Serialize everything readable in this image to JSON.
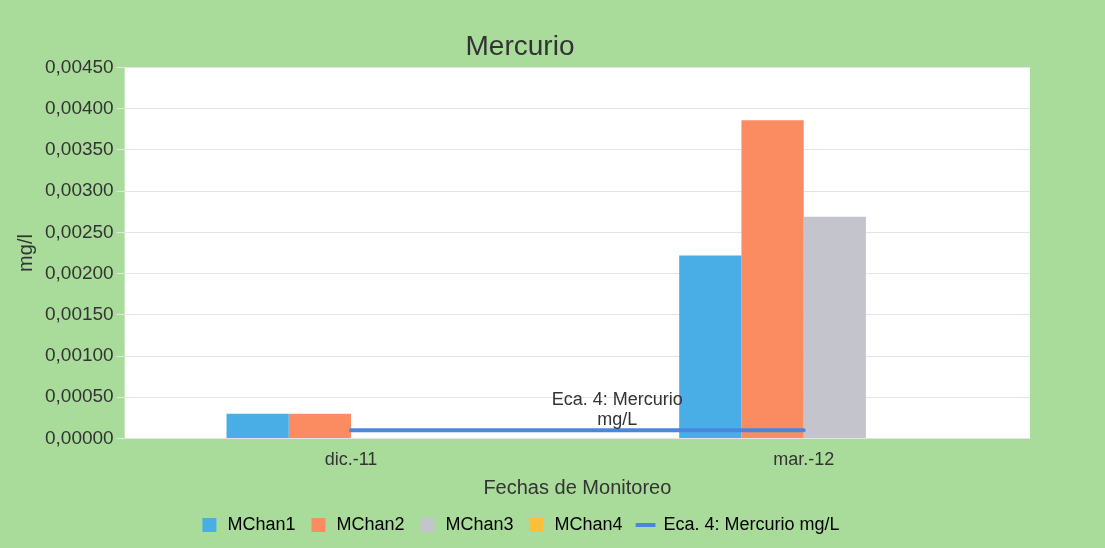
{
  "chart_data": {
    "type": "bar",
    "title": "Mercurio",
    "xlabel": "Fechas de Monitoreo",
    "ylabel": "mg/l",
    "categories": [
      "dic.-11",
      "mar.-12"
    ],
    "series": [
      {
        "name": "MChan1",
        "color": "#4aaee6",
        "values": [
          0.0003,
          0.00222
        ]
      },
      {
        "name": "MChan2",
        "color": "#fb8c62",
        "values": [
          0.0003,
          0.00386
        ]
      },
      {
        "name": "MChan3",
        "color": "#c4c4cc",
        "values": [
          null,
          0.00269
        ]
      },
      {
        "name": "MChan4",
        "color": "#fbbf3c",
        "values": [
          null,
          null
        ]
      },
      {
        "name": "Eca. 4: Mercurio mg/L",
        "type": "line",
        "color": "#4a86dc",
        "values": [
          0.0001,
          0.0001
        ]
      }
    ],
    "annotations": [
      "Eca. 4: Mercurio mg/L"
    ],
    "ylim": [
      0,
      0.0045
    ],
    "yticks": [
      {
        "value": 0,
        "label": "0,00000"
      },
      {
        "value": 0.0005,
        "label": "0,00050"
      },
      {
        "value": 0.001,
        "label": "0,00100"
      },
      {
        "value": 0.0015,
        "label": "0,00150"
      },
      {
        "value": 0.002,
        "label": "0,00200"
      },
      {
        "value": 0.0025,
        "label": "0,00250"
      },
      {
        "value": 0.003,
        "label": "0,00300"
      },
      {
        "value": 0.0035,
        "label": "0,00350"
      },
      {
        "value": 0.004,
        "label": "0,00400"
      },
      {
        "value": 0.0045,
        "label": "0,00450"
      }
    ],
    "grid": "y",
    "legend": "bottom",
    "marker": "none"
  }
}
